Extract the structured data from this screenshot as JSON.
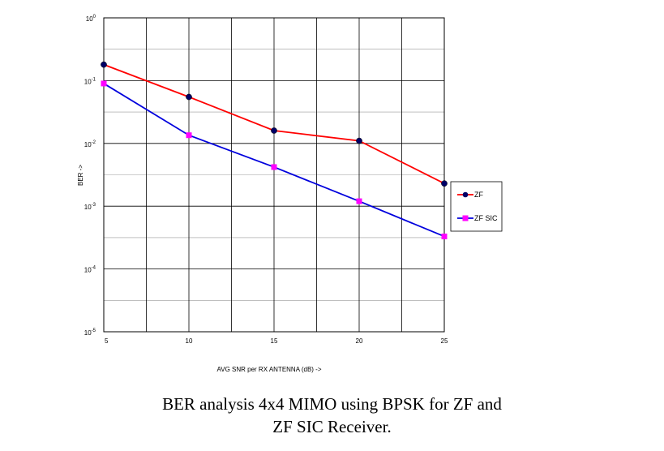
{
  "chart_data": {
    "type": "line",
    "title": "",
    "xlabel": "AVG SNR per RX ANTENNA (dB) ->",
    "ylabel": "BER ->",
    "x": [
      5,
      10,
      15,
      20,
      25
    ],
    "x_ticks": [
      "5",
      "10",
      "15",
      "20",
      "25"
    ],
    "xlim": [
      5,
      25
    ],
    "y_scale": "log",
    "ylim": [
      1e-05,
      1
    ],
    "y_ticks": [
      {
        "base": "10",
        "exp": "0"
      },
      {
        "base": "10",
        "exp": "-1"
      },
      {
        "base": "10",
        "exp": "-2"
      },
      {
        "base": "10",
        "exp": "-3"
      },
      {
        "base": "10",
        "exp": "-4"
      },
      {
        "base": "10",
        "exp": "-5"
      }
    ],
    "grid": true,
    "legend_position": "right",
    "series": [
      {
        "name": "ZF",
        "color": "#ff0000",
        "marker_color": "#000066",
        "marker": "circle",
        "values": [
          0.18,
          0.055,
          0.016,
          0.011,
          0.0023
        ]
      },
      {
        "name": "ZF SIC",
        "color": "#0000dd",
        "marker_color": "#ff00ff",
        "marker": "square",
        "values": [
          0.09,
          0.0135,
          0.0042,
          0.0012,
          0.00033
        ]
      }
    ]
  },
  "caption": {
    "line1": "BER analysis 4x4 MIMO using BPSK for ZF and",
    "line2": "ZF SIC Receiver."
  }
}
